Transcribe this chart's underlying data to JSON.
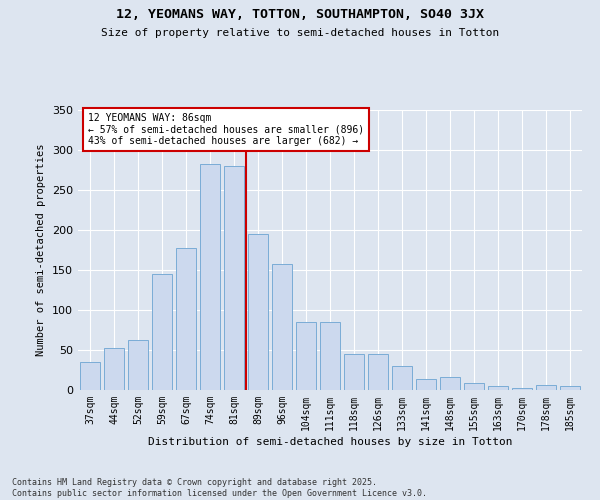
{
  "title_line1": "12, YEOMANS WAY, TOTTON, SOUTHAMPTON, SO40 3JX",
  "title_line2": "Size of property relative to semi-detached houses in Totton",
  "xlabel": "Distribution of semi-detached houses by size in Totton",
  "ylabel": "Number of semi-detached properties",
  "categories": [
    "37sqm",
    "44sqm",
    "52sqm",
    "59sqm",
    "67sqm",
    "74sqm",
    "81sqm",
    "89sqm",
    "96sqm",
    "104sqm",
    "111sqm",
    "118sqm",
    "126sqm",
    "133sqm",
    "141sqm",
    "148sqm",
    "155sqm",
    "163sqm",
    "170sqm",
    "178sqm",
    "185sqm"
  ],
  "values": [
    35,
    52,
    62,
    145,
    177,
    283,
    280,
    195,
    157,
    85,
    85,
    45,
    45,
    30,
    14,
    16,
    9,
    5,
    2,
    6,
    5
  ],
  "bar_color": "#ccd9ee",
  "bar_edge_color": "#7aacd6",
  "vline_x": 7,
  "vline_color": "#cc0000",
  "annotation_text": "12 YEOMANS WAY: 86sqm\n← 57% of semi-detached houses are smaller (896)\n43% of semi-detached houses are larger (682) →",
  "annotation_box_color": "#ffffff",
  "annotation_box_edge": "#cc0000",
  "footer_text": "Contains HM Land Registry data © Crown copyright and database right 2025.\nContains public sector information licensed under the Open Government Licence v3.0.",
  "background_color": "#dde5f0",
  "plot_bg_color": "#dde5f0",
  "ylim": [
    0,
    350
  ],
  "yticks": [
    0,
    50,
    100,
    150,
    200,
    250,
    300,
    350
  ]
}
